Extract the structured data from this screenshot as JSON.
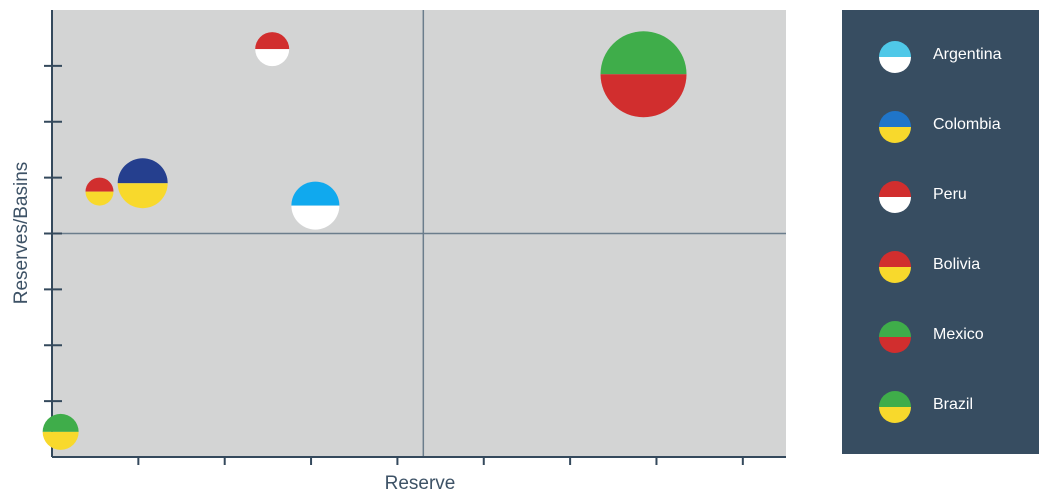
{
  "chart_data": {
    "type": "scatter",
    "subtype": "bubble",
    "xlabel": "Reserve",
    "ylabel": "Reserves/Basins",
    "xlim": [
      0,
      8.5
    ],
    "ylim": [
      0,
      8
    ],
    "x_ticks": [
      1,
      2,
      3,
      4,
      5,
      6,
      7,
      8
    ],
    "y_ticks": [
      1,
      2,
      3,
      4,
      5,
      6,
      7
    ],
    "quadrant_dividers": {
      "x": 4.3,
      "y": 4
    },
    "grid": false,
    "legend_position": "right",
    "background_color": "#d3d4d4",
    "series": [
      {
        "name": "Argentina",
        "colors": [
          "#4fc8e8",
          "#ffffff"
        ],
        "points": [
          {
            "x": 3.05,
            "y": 4.5,
            "size": 24
          }
        ]
      },
      {
        "name": "Colombia",
        "colors": [
          "#1f75c9",
          "#f8d92c"
        ],
        "points": [
          {
            "x": 1.05,
            "y": 4.9,
            "size": 25
          }
        ]
      },
      {
        "name": "Peru",
        "colors": [
          "#d12e2e",
          "#ffffff"
        ],
        "points": [
          {
            "x": 2.55,
            "y": 7.3,
            "size": 17
          }
        ]
      },
      {
        "name": "Bolivia",
        "colors": [
          "#d12e2e",
          "#f8d92c"
        ],
        "points": [
          {
            "x": 0.55,
            "y": 4.75,
            "size": 14
          }
        ]
      },
      {
        "name": "Mexico",
        "colors": [
          "#3fad4a",
          "#d12e2e"
        ],
        "points": [
          {
            "x": 6.85,
            "y": 6.85,
            "size": 43
          }
        ]
      },
      {
        "name": "Brazil",
        "colors": [
          "#3fad4a",
          "#f8d92c"
        ],
        "points": [
          {
            "x": 0.1,
            "y": 0.45,
            "size": 18
          }
        ]
      }
    ],
    "marker_overrides": {
      "Colombia": [
        "#253f8e",
        "#f8d92c"
      ],
      "Argentina": [
        "#10a9ee",
        "#ffffff"
      ]
    }
  }
}
